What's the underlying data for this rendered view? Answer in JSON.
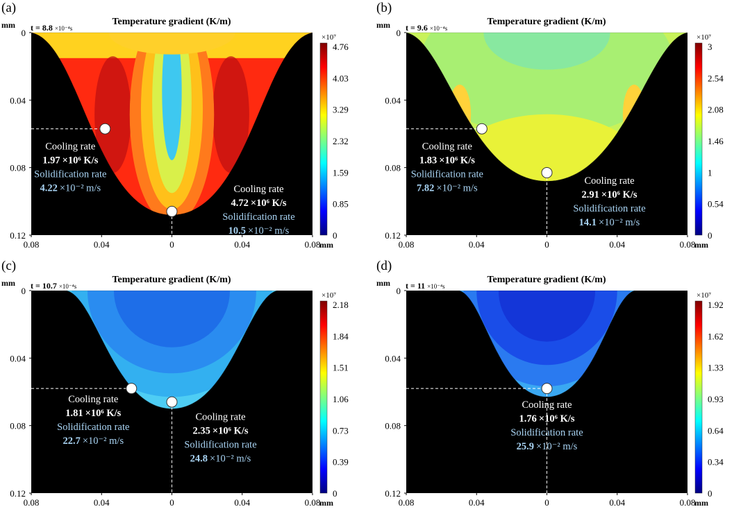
{
  "figure": {
    "common": {
      "title": "Temperature gradient (K/m)",
      "axis_unit": "mm",
      "x_ticks": [
        "0.08",
        "0.04",
        "0",
        "0.04",
        "0.08"
      ],
      "y_ticks": [
        "0",
        "0.04",
        "0.08",
        "0.12"
      ],
      "cb_multiplier": "×10⁷",
      "label_cooling": "Cooling rate",
      "label_solid": "Solidification rate",
      "cooling_unit": "×10⁶ K/s",
      "solid_unit": "×10⁻² m/s"
    },
    "panels": [
      {
        "label": "(a)",
        "time_label": "t = 8.8",
        "time_unit": "×10⁻⁴s",
        "colorbar_ticks": [
          "4.76",
          "4.03",
          "3.29",
          "2.32",
          "1.59",
          "0.85",
          "0"
        ],
        "points": [
          {
            "cooling": "1.97",
            "solid": "4.22"
          },
          {
            "cooling": "4.72",
            "solid": "10.5"
          }
        ]
      },
      {
        "label": "(b)",
        "time_label": "t = 9.6",
        "time_unit": "×10⁻⁴s",
        "colorbar_ticks": [
          "3",
          "2.54",
          "2.08",
          "1.46",
          "1",
          "0.54",
          "0"
        ],
        "points": [
          {
            "cooling": "1.83",
            "solid": "7.82"
          },
          {
            "cooling": "2.91",
            "solid": "14.1"
          }
        ]
      },
      {
        "label": "(c)",
        "time_label": "t = 10.7",
        "time_unit": "×10⁻⁴s",
        "colorbar_ticks": [
          "2.18",
          "1.84",
          "1.51",
          "1.06",
          "0.73",
          "0.39",
          "0"
        ],
        "points": [
          {
            "cooling": "1.81",
            "solid": "22.7"
          },
          {
            "cooling": "2.35",
            "solid": "24.8"
          }
        ]
      },
      {
        "label": "(d)",
        "time_label": "t = 11",
        "time_unit": "×10⁻⁴s",
        "colorbar_ticks": [
          "1.92",
          "1.62",
          "1.33",
          "0.93",
          "0.64",
          "0.34",
          "0"
        ],
        "points": [
          {
            "cooling": "1.76",
            "solid": "25.9"
          }
        ]
      }
    ]
  },
  "chart_data": [
    {
      "type": "heatmap",
      "panel": "(a)",
      "title": "Temperature gradient (K/m)",
      "xlabel": "mm",
      "ylabel": "mm",
      "xlim": [
        -0.08,
        0.08
      ],
      "ylim": [
        0.12,
        0
      ],
      "colorbar_range": [
        0,
        4.76
      ],
      "colorbar_multiplier": "1e7",
      "pool_half_width_top": 0.08,
      "pool_depth": 0.108,
      "time": 8.8,
      "time_unit": "1e-4 s",
      "points": [
        {
          "x": -0.038,
          "y": 0.057,
          "cooling_rate_1e6_K_per_s": 1.97,
          "solidification_rate_1e-2_m_per_s": 4.22
        },
        {
          "x": 0.0,
          "y": 0.106,
          "cooling_rate_1e6_K_per_s": 4.72,
          "solidification_rate_1e-2_m_per_s": 10.5
        }
      ]
    },
    {
      "type": "heatmap",
      "panel": "(b)",
      "title": "Temperature gradient (K/m)",
      "xlabel": "mm",
      "ylabel": "mm",
      "xlim": [
        -0.08,
        0.08
      ],
      "ylim": [
        0.12,
        0
      ],
      "colorbar_range": [
        0,
        3
      ],
      "colorbar_multiplier": "1e7",
      "pool_half_width_top": 0.08,
      "pool_depth": 0.088,
      "time": 9.6,
      "time_unit": "1e-4 s",
      "points": [
        {
          "x": -0.037,
          "y": 0.057,
          "cooling_rate_1e6_K_per_s": 1.83,
          "solidification_rate_1e-2_m_per_s": 7.82
        },
        {
          "x": 0.0,
          "y": 0.083,
          "cooling_rate_1e6_K_per_s": 2.91,
          "solidification_rate_1e-2_m_per_s": 14.1
        }
      ]
    },
    {
      "type": "heatmap",
      "panel": "(c)",
      "title": "Temperature gradient (K/m)",
      "xlabel": "mm",
      "ylabel": "mm",
      "xlim": [
        -0.08,
        0.08
      ],
      "ylim": [
        0.12,
        0
      ],
      "colorbar_range": [
        0,
        2.18
      ],
      "colorbar_multiplier": "1e7",
      "pool_half_width_top": 0.06,
      "pool_depth": 0.07,
      "time": 10.7,
      "time_unit": "1e-4 s",
      "points": [
        {
          "x": -0.023,
          "y": 0.058,
          "cooling_rate_1e6_K_per_s": 1.81,
          "solidification_rate_1e-2_m_per_s": 22.7
        },
        {
          "x": 0.0,
          "y": 0.066,
          "cooling_rate_1e6_K_per_s": 2.35,
          "solidification_rate_1e-2_m_per_s": 24.8
        }
      ]
    },
    {
      "type": "heatmap",
      "panel": "(d)",
      "title": "Temperature gradient (K/m)",
      "xlabel": "mm",
      "ylabel": "mm",
      "xlim": [
        -0.08,
        0.08
      ],
      "ylim": [
        0.12,
        0
      ],
      "colorbar_range": [
        0,
        1.92
      ],
      "colorbar_multiplier": "1e7",
      "pool_half_width_top": 0.05,
      "pool_depth": 0.063,
      "time": 11,
      "time_unit": "1e-4 s",
      "points": [
        {
          "x": 0.0,
          "y": 0.058,
          "cooling_rate_1e6_K_per_s": 1.76,
          "solidification_rate_1e-2_m_per_s": 25.9
        }
      ]
    }
  ]
}
